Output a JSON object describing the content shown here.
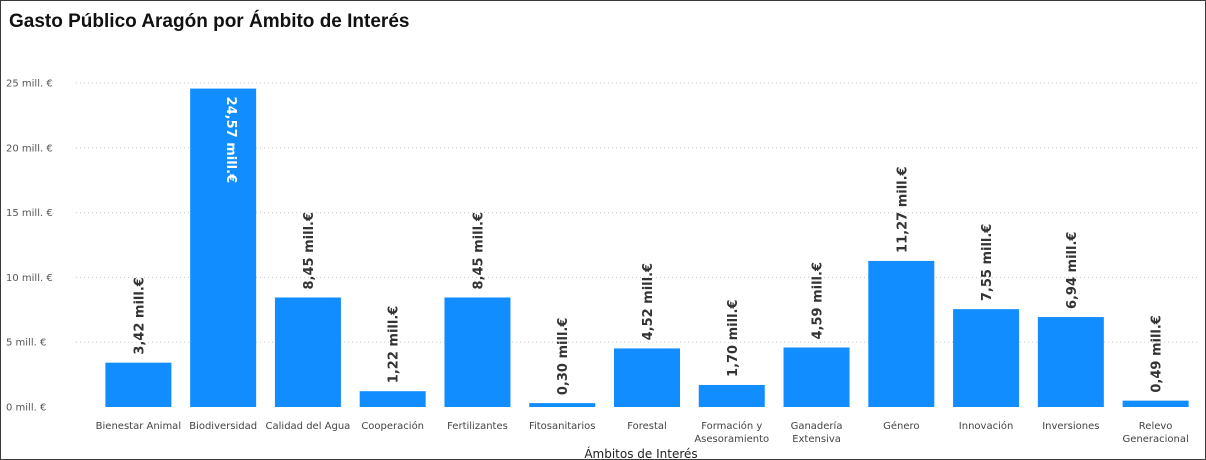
{
  "chart_data": {
    "type": "bar",
    "title": "Gasto Público Aragón por Ámbito de Interés",
    "xlabel": "Ámbitos de Interés",
    "ylabel": "",
    "ylim": [
      0,
      25
    ],
    "yticks": [
      0,
      5,
      10,
      15,
      20,
      25
    ],
    "ytick_labels": [
      "0 mill. €",
      "5 mill. €",
      "10 mill. €",
      "15 mill. €",
      "20 mill. €",
      "25 mill. €"
    ],
    "grid": true,
    "bar_color": "#118dff",
    "categories": [
      "Bienestar Animal",
      "Biodiversidad",
      "Calidad del Agua",
      "Cooperación",
      "Fertilizantes",
      "Fitosanitarios",
      "Forestal",
      "Formación y Asesoramiento",
      "Ganadería Extensiva",
      "Género",
      "Innovación",
      "Inversiones",
      "Relevo Generacional"
    ],
    "category_lines": [
      [
        "Bienestar Animal"
      ],
      [
        "Biodiversidad"
      ],
      [
        "Calidad del Agua"
      ],
      [
        "Cooperación"
      ],
      [
        "Fertilizantes"
      ],
      [
        "Fitosanitarios"
      ],
      [
        "Forestal"
      ],
      [
        "Formación y",
        "Asesoramiento"
      ],
      [
        "Ganadería",
        "Extensiva"
      ],
      [
        "Género"
      ],
      [
        "Innovación"
      ],
      [
        "Inversiones"
      ],
      [
        "Relevo",
        "Generacional"
      ]
    ],
    "values": [
      3.42,
      24.57,
      8.45,
      1.22,
      8.45,
      0.3,
      4.52,
      1.7,
      4.59,
      11.27,
      7.55,
      6.94,
      0.49
    ],
    "data_labels": [
      "3,42 mill.€",
      "24,57 mill.€",
      "8,45 mill.€",
      "1,22 mill.€",
      "8,45 mill.€",
      "0,30 mill.€",
      "4,52 mill.€",
      "1,70 mill.€",
      "4,59 mill.€",
      "11,27 mill.€",
      "7,55 mill.€",
      "6,94 mill.€",
      "0,49 mill.€"
    ]
  }
}
